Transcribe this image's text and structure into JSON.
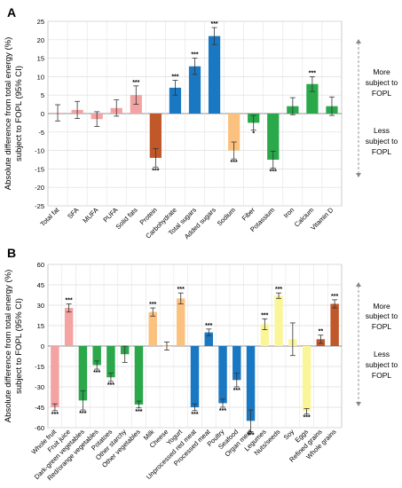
{
  "chart_data": [
    {
      "panel_label": "A",
      "type": "bar",
      "ylabel": "Absolute difference from total energy (%) subject to FOPL (95% CI)",
      "ylim": [
        -25,
        25
      ],
      "yticks": [
        25,
        20,
        15,
        10,
        5,
        0,
        -5,
        -10,
        -15,
        -20,
        -25
      ],
      "grid": true,
      "categories": [
        "Total fat",
        "SFA",
        "MUFA",
        "PUFA",
        "Solid fats",
        "Protein",
        "Carbohydrate",
        "Total sugars",
        "Added sugars",
        "Sodium",
        "Fiber",
        "Potassium",
        "Iron",
        "Calcium",
        "Vitamin D"
      ],
      "values": [
        0.2,
        1.0,
        -1.5,
        1.5,
        5.0,
        -12.0,
        7.0,
        12.8,
        21.0,
        -10.0,
        -2.5,
        -12.5,
        2.0,
        8.0,
        2.0
      ],
      "err": [
        2.2,
        2.3,
        2.0,
        2.2,
        2.5,
        2.5,
        2.0,
        2.2,
        2.3,
        2.3,
        2.0,
        2.3,
        2.3,
        2.0,
        2.5
      ],
      "colors": [
        "#f4a3a3",
        "#f4a3a3",
        "#f4a3a3",
        "#f4a3a3",
        "#f4a3a3",
        "#c0582a",
        "#1a78c2",
        "#1a78c2",
        "#1a78c2",
        "#fbc27f",
        "#2aa84a",
        "#2aa84a",
        "#2aa84a",
        "#2aa84a",
        "#2aa84a"
      ],
      "sig": [
        "",
        "",
        "",
        "",
        "***",
        "***",
        "***",
        "***",
        "***",
        "***",
        "*",
        "***",
        "",
        "***",
        ""
      ],
      "right_top": [
        "More",
        "subject to",
        "FOPL"
      ],
      "right_bottom": [
        "Less",
        "subject to",
        "FOPL"
      ]
    },
    {
      "panel_label": "B",
      "type": "bar",
      "ylabel": "Absolute difference from total energy (%) subject to FOPL (95% CI)",
      "ylim": [
        -60,
        60
      ],
      "yticks": [
        60,
        45,
        30,
        15,
        0,
        -15,
        -30,
        -45,
        -60
      ],
      "grid": true,
      "categories": [
        "Whole fruit",
        "Fruit juice",
        "Dark-green vegetables",
        "Red/orange vegetables",
        "Potatoes",
        "Other starchy",
        "Other vegetables",
        "Milk",
        "Cheese",
        "Yogurt",
        "Unprocessed red meat",
        "Processed meat",
        "Poultry",
        "Seafood",
        "Organ meat",
        "Legumes",
        "Nuts/seeds",
        "Soy",
        "Eggs",
        "Refined grains",
        "Whole grains"
      ],
      "values": [
        -45,
        28,
        -40,
        -14,
        -23,
        -6,
        -43,
        25,
        0,
        35,
        -45,
        10,
        -42,
        -25,
        -55,
        16,
        37,
        5,
        -48,
        5,
        31
      ],
      "err": [
        2.5,
        3,
        7,
        3,
        3,
        6,
        2.5,
        3,
        3,
        4,
        2.5,
        2.5,
        3,
        5,
        8,
        4,
        2,
        12,
        2,
        3,
        3
      ],
      "colors": [
        "#f4a3a3",
        "#f4a3a3",
        "#2aa84a",
        "#2aa84a",
        "#2aa84a",
        "#2aa84a",
        "#2aa84a",
        "#fbc27f",
        "#fbc27f",
        "#fbc27f",
        "#1a78c2",
        "#1a78c2",
        "#1a78c2",
        "#1a78c2",
        "#1a78c2",
        "#fbf59a",
        "#fbf59a",
        "#fbf59a",
        "#fbf59a",
        "#c0582a",
        "#c0582a"
      ],
      "sig": [
        "***",
        "***",
        "***",
        "***",
        "***",
        "",
        "***",
        "***",
        "",
        "***",
        "***",
        "***",
        "***",
        "***",
        "***",
        "***",
        "***",
        "",
        "***",
        "**",
        "***"
      ],
      "right_top": [
        "More",
        "subject to",
        "FOPL"
      ],
      "right_bottom": [
        "Less",
        "subject to",
        "FOPL"
      ]
    }
  ]
}
